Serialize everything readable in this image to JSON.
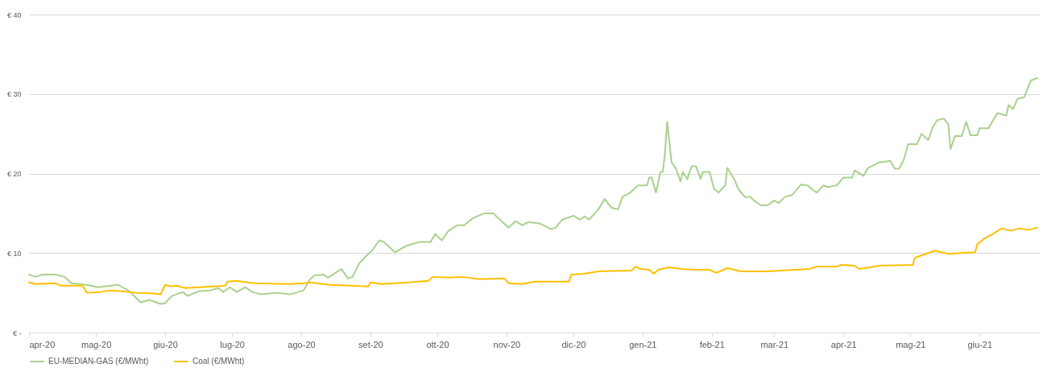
{
  "chart_data": {
    "type": "line",
    "legend": "bottom",
    "grid": "y",
    "xlim": [
      "2020-04-01",
      "2021-06-28"
    ],
    "xticks": [
      {
        "value": "2020-04-01",
        "label": "apr-20"
      },
      {
        "value": "2020-05-01",
        "label": "mag-20"
      },
      {
        "value": "2020-06-01",
        "label": "giu-20"
      },
      {
        "value": "2020-07-01",
        "label": "lug-20"
      },
      {
        "value": "2020-08-01",
        "label": "ago-20"
      },
      {
        "value": "2020-09-01",
        "label": "set-20"
      },
      {
        "value": "2020-10-01",
        "label": "ott-20"
      },
      {
        "value": "2020-11-01",
        "label": "nov-20"
      },
      {
        "value": "2020-12-01",
        "label": "dic-20"
      },
      {
        "value": "2021-01-01",
        "label": "gen-21"
      },
      {
        "value": "2021-02-01",
        "label": "feb-21"
      },
      {
        "value": "2021-03-01",
        "label": "mar-21"
      },
      {
        "value": "2021-04-01",
        "label": "apr-21"
      },
      {
        "value": "2021-05-01",
        "label": "mag-21"
      },
      {
        "value": "2021-06-01",
        "label": "giu-21"
      }
    ],
    "ylim": [
      0,
      40
    ],
    "yticks": [
      {
        "value": 0,
        "label": "€ -"
      },
      {
        "value": 10,
        "label": "€ 10"
      },
      {
        "value": 20,
        "label": "€ 20"
      },
      {
        "value": 30,
        "label": "€ 30"
      },
      {
        "value": 40,
        "label": "€ 40"
      }
    ],
    "series": [
      {
        "name": "EU-MEDIAN-GAS (€/MWht)",
        "color": "#a9d18e",
        "x": [
          "2020-04-01",
          "2020-04-04",
          "2020-04-07",
          "2020-04-13",
          "2020-04-17",
          "2020-04-20",
          "2020-04-27",
          "2020-05-02",
          "2020-05-11",
          "2020-05-16",
          "2020-05-21",
          "2020-05-25",
          "2020-05-30",
          "2020-06-01",
          "2020-06-04",
          "2020-06-09",
          "2020-06-11",
          "2020-06-16",
          "2020-06-21",
          "2020-06-25",
          "2020-06-27",
          "2020-06-30",
          "2020-07-03",
          "2020-07-07",
          "2020-07-10",
          "2020-07-14",
          "2020-07-21",
          "2020-07-27",
          "2020-08-02",
          "2020-08-05",
          "2020-08-07",
          "2020-08-11",
          "2020-08-13",
          "2020-08-19",
          "2020-08-22",
          "2020-08-24",
          "2020-08-27",
          "2020-08-30",
          "2020-09-02",
          "2020-09-05",
          "2020-09-07",
          "2020-09-12",
          "2020-09-17",
          "2020-09-23",
          "2020-09-28",
          "2020-09-30",
          "2020-10-03",
          "2020-10-06",
          "2020-10-10",
          "2020-10-13",
          "2020-10-17",
          "2020-10-22",
          "2020-10-26",
          "2020-10-31",
          "2020-11-02",
          "2020-11-05",
          "2020-11-08",
          "2020-11-11",
          "2020-11-16",
          "2020-11-21",
          "2020-11-23",
          "2020-11-26",
          "2020-12-01",
          "2020-12-04",
          "2020-12-06",
          "2020-12-08",
          "2020-12-12",
          "2020-12-15",
          "2020-12-18",
          "2020-12-21",
          "2020-12-23",
          "2020-12-26",
          "2020-12-30",
          "2021-01-03",
          "2021-01-04",
          "2021-01-05",
          "2021-01-07",
          "2021-01-09",
          "2021-01-10",
          "2021-01-11",
          "2021-01-12",
          "2021-01-14",
          "2021-01-16",
          "2021-01-18",
          "2021-01-19",
          "2021-01-21",
          "2021-01-23",
          "2021-01-25",
          "2021-01-27",
          "2021-01-28",
          "2021-01-31",
          "2021-02-02",
          "2021-02-04",
          "2021-02-07",
          "2021-02-08",
          "2021-02-11",
          "2021-02-13",
          "2021-02-16",
          "2021-02-18",
          "2021-02-20",
          "2021-02-23",
          "2021-02-26",
          "2021-03-01",
          "2021-03-03",
          "2021-03-06",
          "2021-03-09",
          "2021-03-13",
          "2021-03-16",
          "2021-03-18",
          "2021-03-20",
          "2021-03-23",
          "2021-03-25",
          "2021-03-29",
          "2021-04-01",
          "2021-04-05",
          "2021-04-06",
          "2021-04-10",
          "2021-04-12",
          "2021-04-17",
          "2021-04-22",
          "2021-04-24",
          "2021-04-26",
          "2021-04-28",
          "2021-04-30",
          "2021-05-04",
          "2021-05-06",
          "2021-05-09",
          "2021-05-11",
          "2021-05-13",
          "2021-05-16",
          "2021-05-18",
          "2021-05-19",
          "2021-05-21",
          "2021-05-24",
          "2021-05-26",
          "2021-05-28",
          "2021-05-31",
          "2021-06-01",
          "2021-06-05",
          "2021-06-09",
          "2021-06-13",
          "2021-06-14",
          "2021-06-16",
          "2021-06-18",
          "2021-06-21",
          "2021-06-24",
          "2021-06-27"
        ],
        "values": [
          7.3,
          7.0,
          7.3,
          7.3,
          7.0,
          6.2,
          6.0,
          5.7,
          6.0,
          5.2,
          3.8,
          4.1,
          3.6,
          3.7,
          4.6,
          5.1,
          4.6,
          5.2,
          5.3,
          5.6,
          5.1,
          5.7,
          5.1,
          5.7,
          5.1,
          4.8,
          5.0,
          4.8,
          5.3,
          6.7,
          7.2,
          7.3,
          6.9,
          8.0,
          6.8,
          7.0,
          8.7,
          9.6,
          10.4,
          11.6,
          11.4,
          10.1,
          10.9,
          11.4,
          11.4,
          12.4,
          11.6,
          12.8,
          13.5,
          13.5,
          14.4,
          15.0,
          15.0,
          13.7,
          13.2,
          14.0,
          13.5,
          13.9,
          13.7,
          13.0,
          13.2,
          14.2,
          14.7,
          14.2,
          14.6,
          14.2,
          15.4,
          16.8,
          15.7,
          15.5,
          17.1,
          17.5,
          18.5,
          18.5,
          19.5,
          19.5,
          17.6,
          20.2,
          20.2,
          22.4,
          26.5,
          21.4,
          20.6,
          19.0,
          20.2,
          19.3,
          20.9,
          20.9,
          19.3,
          20.2,
          20.2,
          18.1,
          17.6,
          18.5,
          20.7,
          19.3,
          18.0,
          17.0,
          17.1,
          16.6,
          16.0,
          16.0,
          16.6,
          16.3,
          17.1,
          17.3,
          18.6,
          18.5,
          18.0,
          17.6,
          18.5,
          18.3,
          18.5,
          19.5,
          19.5,
          20.4,
          19.7,
          20.7,
          21.4,
          21.6,
          20.6,
          20.6,
          21.7,
          23.7,
          23.7,
          25.0,
          24.2,
          25.8,
          26.7,
          26.9,
          26.2,
          23.1,
          24.7,
          24.7,
          26.5,
          24.8,
          24.8,
          25.7,
          25.7,
          27.6,
          27.3,
          28.6,
          28.1,
          29.4,
          29.6,
          31.7,
          32.0
        ]
      },
      {
        "name": "Coal (€/MWht)",
        "color": "#ffc000",
        "x": [
          "2020-04-01",
          "2020-04-04",
          "2020-04-13",
          "2020-04-15",
          "2020-04-25",
          "2020-04-27",
          "2020-05-03",
          "2020-05-07",
          "2020-05-13",
          "2020-05-19",
          "2020-05-27",
          "2020-05-30",
          "2020-06-01",
          "2020-06-04",
          "2020-06-06",
          "2020-06-10",
          "2020-06-16",
          "2020-06-23",
          "2020-06-28",
          "2020-06-29",
          "2020-07-03",
          "2020-07-08",
          "2020-07-11",
          "2020-07-27",
          "2020-08-02",
          "2020-08-05",
          "2020-08-08",
          "2020-08-14",
          "2020-08-23",
          "2020-08-31",
          "2020-09-01",
          "2020-09-06",
          "2020-09-18",
          "2020-09-27",
          "2020-09-29",
          "2020-10-06",
          "2020-10-12",
          "2020-10-20",
          "2020-10-31",
          "2020-11-02",
          "2020-11-08",
          "2020-11-14",
          "2020-11-29",
          "2020-11-30",
          "2020-12-06",
          "2020-12-12",
          "2020-12-27",
          "2020-12-29",
          "2020-12-31",
          "2021-01-04",
          "2021-01-06",
          "2021-01-08",
          "2021-01-13",
          "2021-01-18",
          "2021-01-25",
          "2021-01-31",
          "2021-02-03",
          "2021-02-08",
          "2021-02-14",
          "2021-02-26",
          "2021-03-17",
          "2021-03-20",
          "2021-03-29",
          "2021-03-31",
          "2021-04-06",
          "2021-04-08",
          "2021-04-13",
          "2021-04-17",
          "2021-05-02",
          "2021-05-03",
          "2021-05-06",
          "2021-05-12",
          "2021-05-18",
          "2021-05-30",
          "2021-05-31",
          "2021-06-03",
          "2021-06-07",
          "2021-06-11",
          "2021-06-15",
          "2021-06-19",
          "2021-06-23",
          "2021-06-27"
        ],
        "values": [
          6.3,
          6.1,
          6.2,
          5.9,
          5.9,
          5.0,
          5.1,
          5.3,
          5.2,
          5.0,
          4.9,
          4.8,
          6.0,
          5.8,
          5.9,
          5.6,
          5.7,
          5.8,
          5.9,
          6.4,
          6.5,
          6.3,
          6.2,
          6.1,
          6.2,
          6.3,
          6.2,
          6.0,
          5.9,
          5.8,
          6.3,
          6.1,
          6.3,
          6.5,
          7.0,
          6.9,
          7.0,
          6.7,
          6.8,
          6.2,
          6.1,
          6.4,
          6.4,
          7.3,
          7.4,
          7.7,
          7.8,
          8.3,
          8.0,
          7.9,
          7.4,
          7.9,
          8.2,
          8.0,
          7.9,
          7.9,
          7.5,
          8.1,
          7.7,
          7.7,
          8.0,
          8.3,
          8.3,
          8.5,
          8.4,
          8.0,
          8.2,
          8.4,
          8.5,
          9.4,
          9.7,
          10.3,
          9.9,
          10.1,
          11.1,
          11.8,
          12.4,
          13.1,
          12.8,
          13.1,
          12.9,
          13.2
        ]
      }
    ]
  }
}
